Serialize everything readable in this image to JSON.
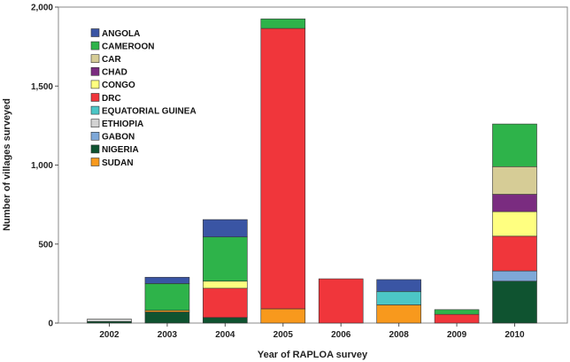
{
  "chart_data": {
    "type": "bar",
    "stacked": true,
    "title": "",
    "xlabel": "Year of RAPLOA survey",
    "ylabel": "Number of villages surveyed",
    "ylim": [
      0,
      2000
    ],
    "yticks": [
      0,
      500,
      1000,
      1500,
      2000
    ],
    "ytick_labels": [
      "0",
      "500",
      "1,000",
      "1,500",
      "2,000"
    ],
    "grid": false,
    "legend_position": "top-left",
    "categories": [
      "2002",
      "2003",
      "2004",
      "2005",
      "2006",
      "2008",
      "2009",
      "2010"
    ],
    "stack_order": [
      "NIGERIA",
      "SUDAN",
      "GABON",
      "ETHIOPIA",
      "EQUATORIAL GUINEA",
      "DRC",
      "CONGO",
      "CHAD",
      "CAR",
      "CAMEROON",
      "ANGOLA"
    ],
    "series": [
      {
        "name": "ANGOLA",
        "color": "#3A55A4",
        "values": [
          0,
          40,
          110,
          0,
          0,
          75,
          0,
          0
        ]
      },
      {
        "name": "CAMEROON",
        "color": "#2EB34A",
        "values": [
          0,
          170,
          280,
          60,
          0,
          0,
          30,
          270
        ]
      },
      {
        "name": "CAR",
        "color": "#D6CC96",
        "values": [
          0,
          0,
          0,
          0,
          0,
          0,
          0,
          175
        ]
      },
      {
        "name": "CHAD",
        "color": "#7A2C80",
        "values": [
          0,
          0,
          0,
          0,
          0,
          0,
          0,
          110
        ]
      },
      {
        "name": "CONGO",
        "color": "#FFFF80",
        "values": [
          0,
          0,
          45,
          0,
          0,
          0,
          0,
          155
        ]
      },
      {
        "name": "DRC",
        "color": "#F0363B",
        "values": [
          0,
          0,
          185,
          1775,
          280,
          0,
          55,
          220
        ]
      },
      {
        "name": "EQUATORIAL GUINEA",
        "color": "#4CC6C6",
        "values": [
          0,
          0,
          0,
          0,
          0,
          85,
          0,
          0
        ]
      },
      {
        "name": "ETHIOPIA",
        "color": "#D2D2D2",
        "values": [
          15,
          0,
          0,
          0,
          0,
          0,
          0,
          0
        ]
      },
      {
        "name": "GABON",
        "color": "#7EA8D8",
        "values": [
          0,
          0,
          0,
          0,
          0,
          0,
          0,
          65
        ]
      },
      {
        "name": "NIGERIA",
        "color": "#0F5330",
        "values": [
          10,
          70,
          35,
          0,
          0,
          0,
          0,
          265
        ]
      },
      {
        "name": "SUDAN",
        "color": "#F8991D",
        "values": [
          0,
          10,
          0,
          90,
          0,
          115,
          0,
          0
        ]
      }
    ]
  }
}
